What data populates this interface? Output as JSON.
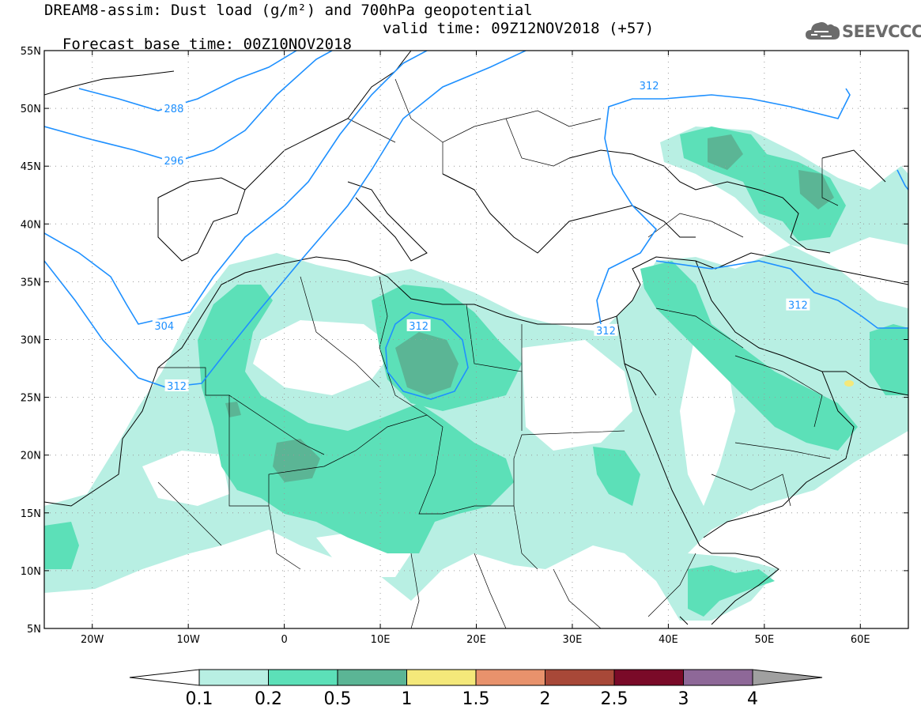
{
  "header": {
    "line1": "DREAM8-assim: Dust load (g/m²) and 700hPa geopotential",
    "base_time": "Forecast base time: 00Z10NOV2018",
    "valid_time": "valid time: 09Z12NOV2018 (+57)"
  },
  "logo": {
    "text": "SEEVCCC",
    "icon": "cloud-icon"
  },
  "map": {
    "lon_range": [
      -25,
      65
    ],
    "lat_range": [
      5,
      55
    ],
    "lat_ticks": [
      {
        "value": 55,
        "label": "55N"
      },
      {
        "value": 50,
        "label": "50N"
      },
      {
        "value": 45,
        "label": "45N"
      },
      {
        "value": 40,
        "label": "40N"
      },
      {
        "value": 35,
        "label": "35N"
      },
      {
        "value": 30,
        "label": "30N"
      },
      {
        "value": 25,
        "label": "25N"
      },
      {
        "value": 20,
        "label": "20N"
      },
      {
        "value": 15,
        "label": "15N"
      },
      {
        "value": 10,
        "label": "10N"
      },
      {
        "value": 5,
        "label": "5N"
      }
    ],
    "lon_ticks": [
      {
        "value": -20,
        "label": "20W"
      },
      {
        "value": -10,
        "label": "10W"
      },
      {
        "value": 0,
        "label": "0"
      },
      {
        "value": 10,
        "label": "10E"
      },
      {
        "value": 20,
        "label": "20E"
      },
      {
        "value": 30,
        "label": "30E"
      },
      {
        "value": 40,
        "label": "40E"
      },
      {
        "value": 50,
        "label": "50E"
      },
      {
        "value": 60,
        "label": "60E"
      }
    ],
    "contour_labels": [
      {
        "text": "288",
        "lon": -11.5,
        "lat": 50.0
      },
      {
        "text": "296",
        "lon": -11.5,
        "lat": 45.5
      },
      {
        "text": "304",
        "lon": -12.5,
        "lat": 31.2
      },
      {
        "text": "312",
        "lon": -11.2,
        "lat": 26.0
      },
      {
        "text": "312",
        "lon": 14.0,
        "lat": 31.2
      },
      {
        "text": "312",
        "lon": 33.5,
        "lat": 30.8
      },
      {
        "text": "312",
        "lon": 38.0,
        "lat": 52.0
      },
      {
        "text": "312",
        "lon": 53.5,
        "lat": 33.0
      }
    ],
    "colors": {
      "contour": "#1e90ff",
      "coast": "#000000",
      "grid": "#999999"
    }
  },
  "colorbar": {
    "labels": [
      "0.1",
      "0.2",
      "0.5",
      "1",
      "1.5",
      "2",
      "2.5",
      "3",
      "4"
    ],
    "colors": [
      "#ffffff",
      "#b8efe3",
      "#5ce0b8",
      "#5bb595",
      "#f4e87a",
      "#e8926c",
      "#a84838",
      "#7a0a28",
      "#8e6898",
      "#a0a0a0"
    ]
  }
}
